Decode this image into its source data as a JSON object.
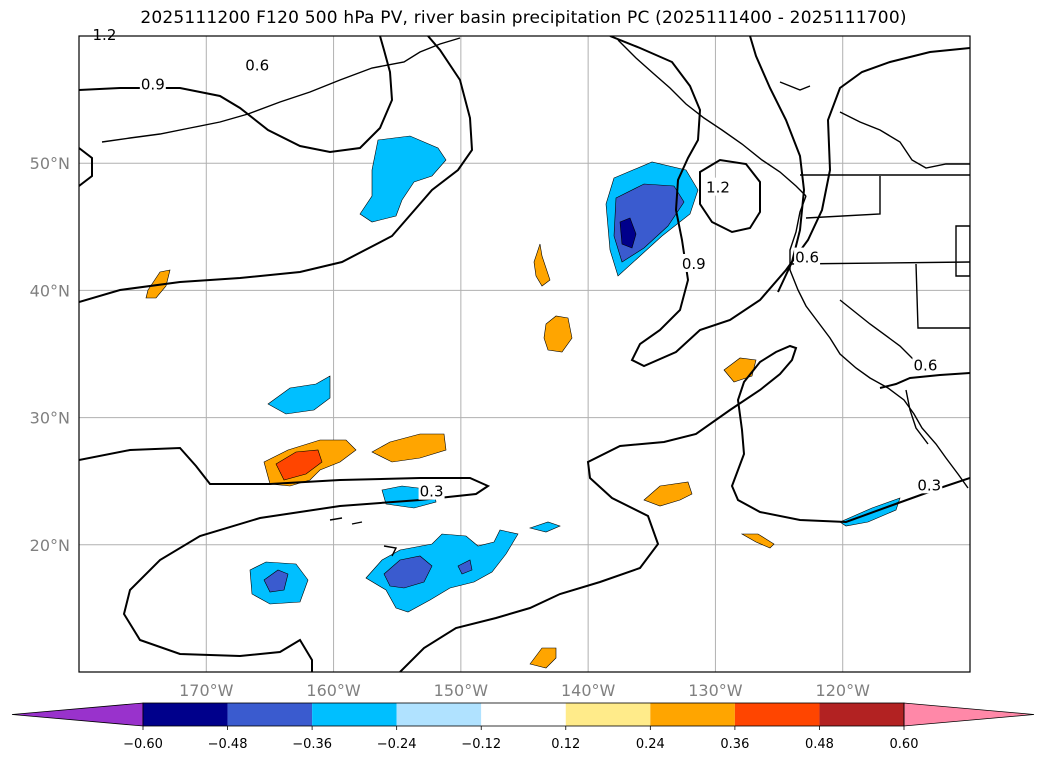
{
  "chart_data": {
    "type": "map-contour",
    "title": "2025111200 F120 500 hPa PV, river basin precipitation PC (2025111400 - 2025111700)",
    "extent": {
      "lon": [
        -180,
        -110
      ],
      "lat": [
        10,
        60
      ]
    },
    "gridlines": true,
    "lat_ticks": [
      {
        "value": 20,
        "label": "20°N"
      },
      {
        "value": 30,
        "label": "30°N"
      },
      {
        "value": 40,
        "label": "40°N"
      },
      {
        "value": 50,
        "label": "50°N"
      }
    ],
    "lon_ticks": [
      {
        "value": -170,
        "label": "170°W"
      },
      {
        "value": -160,
        "label": "160°W"
      },
      {
        "value": -150,
        "label": "150°W"
      },
      {
        "value": -140,
        "label": "140°W"
      },
      {
        "value": -130,
        "label": "130°W"
      },
      {
        "value": -120,
        "label": "120°W"
      }
    ],
    "pv_contour_labels": [
      {
        "text": "1.2",
        "lon": -178,
        "lat": 60
      },
      {
        "text": "0.9",
        "lon": -174.2,
        "lat": 56.1
      },
      {
        "text": "0.6",
        "lon": -166,
        "lat": 57.6
      },
      {
        "text": "1.2",
        "lon": -129.8,
        "lat": 48
      },
      {
        "text": "0.9",
        "lon": -131.7,
        "lat": 42
      },
      {
        "text": "0.6",
        "lon": -122.8,
        "lat": 42.5
      },
      {
        "text": "0.6",
        "lon": -113.5,
        "lat": 34
      },
      {
        "text": "0.3",
        "lon": -152.3,
        "lat": 24.1
      },
      {
        "text": "0.3",
        "lon": -113.2,
        "lat": 24.6
      }
    ],
    "colorbar": {
      "levels": [
        -0.6,
        -0.48,
        -0.36,
        -0.24,
        -0.12,
        0.12,
        0.24,
        0.36,
        0.48,
        0.6
      ],
      "tick_labels": [
        "−0.60",
        "−0.48",
        "−0.36",
        "−0.24",
        "−0.12",
        "0.12",
        "0.24",
        "0.36",
        "0.48",
        "0.60"
      ],
      "colors": [
        "#9932cc",
        "#00008b",
        "#3a5bcf",
        "#00bfff",
        "#b0e2ff",
        "#ffffff",
        "#ffeb8a",
        "#ffa500",
        "#ff4500",
        "#b22222",
        "#ff88a8"
      ],
      "extend": "both"
    }
  }
}
